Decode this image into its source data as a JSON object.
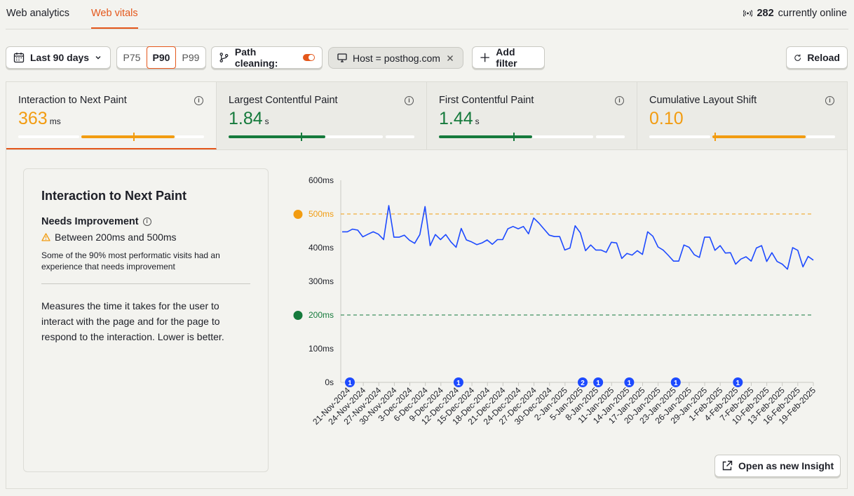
{
  "tabs": [
    {
      "label": "Web analytics",
      "active": false
    },
    {
      "label": "Web vitals",
      "active": true
    }
  ],
  "online": {
    "count": "282",
    "label": "currently online"
  },
  "toolbar": {
    "date_range": "Last 90 days",
    "percentiles": [
      "P75",
      "P90",
      "P99"
    ],
    "selected_percentile": "P90",
    "path_cleaning": "Path cleaning:",
    "host_filter": "Host = posthog.com",
    "add_filter": "Add filter",
    "reload": "Reload"
  },
  "metrics": [
    {
      "name": "Interaction to Next Paint",
      "value": "363",
      "unit": "ms",
      "color": "#f29c11",
      "fill": [
        0.34,
        0.84
      ],
      "marker": 0.62
    },
    {
      "name": "Largest Contentful Paint",
      "value": "1.84",
      "unit": "s",
      "color": "#157a3c",
      "fill": [
        0.0,
        0.52
      ],
      "marker": 0.39
    },
    {
      "name": "First Contentful Paint",
      "value": "1.44",
      "unit": "s",
      "color": "#157a3c",
      "fill": [
        0.0,
        0.5
      ],
      "marker": 0.4
    },
    {
      "name": "Cumulative Layout Shift",
      "value": "0.10",
      "unit": "",
      "color": "#f29c11",
      "fill": [
        0.34,
        0.84
      ],
      "marker": 0.35
    }
  ],
  "description": {
    "title": "Interaction to Next Paint",
    "status": "Needs Improvement",
    "range": "Between 200ms and 500ms",
    "note": "Some of the 90% most performatic visits had an experience that needs improvement",
    "long": "Measures the time it takes for the user to interact with the page and for the page to respond to the interaction. Lower is better."
  },
  "open_insight": "Open as new Insight",
  "chart_data": {
    "type": "line",
    "y_ticks": [
      "0s",
      "100ms",
      "200ms",
      "300ms",
      "400ms",
      "500ms",
      "600ms"
    ],
    "ylim": [
      0,
      600
    ],
    "thresholds": [
      {
        "value": 500,
        "label": "500ms",
        "color": "#f29c11"
      },
      {
        "value": 200,
        "label": "200ms",
        "color": "#157a3c"
      }
    ],
    "x_labels": [
      "21-Nov-2024",
      "24-Nov-2024",
      "27-Nov-2024",
      "30-Nov-2024",
      "3-Dec-2024",
      "6-Dec-2024",
      "9-Dec-2024",
      "12-Dec-2024",
      "15-Dec-2024",
      "18-Dec-2024",
      "21-Dec-2024",
      "24-Dec-2024",
      "27-Dec-2024",
      "30-Dec-2024",
      "2-Jan-2025",
      "5-Jan-2025",
      "8-Jan-2025",
      "11-Jan-2025",
      "14-Jan-2025",
      "17-Jan-2025",
      "20-Jan-2025",
      "23-Jan-2025",
      "26-Jan-2025",
      "29-Jan-2025",
      "1-Feb-2025",
      "4-Feb-2025",
      "7-Feb-2025",
      "10-Feb-2025",
      "13-Feb-2025",
      "16-Feb-2025",
      "19-Feb-2025"
    ],
    "series": [
      {
        "color": "#1d4aff",
        "values": [
          447,
          447,
          455,
          452,
          432,
          440,
          447,
          440,
          424,
          525,
          431,
          431,
          437,
          422,
          413,
          439,
          522,
          406,
          439,
          424,
          439,
          417,
          401,
          457,
          423,
          417,
          409,
          414,
          423,
          410,
          424,
          424,
          456,
          463,
          456,
          463,
          441,
          488,
          473,
          455,
          437,
          433,
          433,
          393,
          399,
          465,
          444,
          391,
          408,
          393,
          393,
          386,
          416,
          414,
          368,
          383,
          378,
          391,
          380,
          447,
          434,
          402,
          393,
          377,
          360,
          360,
          408,
          401,
          379,
          371,
          431,
          431,
          392,
          406,
          384,
          385,
          351,
          366,
          373,
          360,
          399,
          406,
          359,
          385,
          359,
          351,
          336,
          400,
          392,
          343,
          374,
          363
        ]
      }
    ],
    "annotations": [
      {
        "x_label": "21-Nov-2024",
        "count": "1"
      },
      {
        "x_label": "12-Dec-2024",
        "count": "1"
      },
      {
        "x_label": "5-Jan-2025",
        "count": "2"
      },
      {
        "x_label": "8-Jan-2025",
        "count": "1"
      },
      {
        "x_label": "14-Jan-2025",
        "count": "1"
      },
      {
        "x_label": "23-Jan-2025",
        "count": "1"
      },
      {
        "x_label": "4-Feb-2025",
        "count": "1"
      }
    ]
  }
}
